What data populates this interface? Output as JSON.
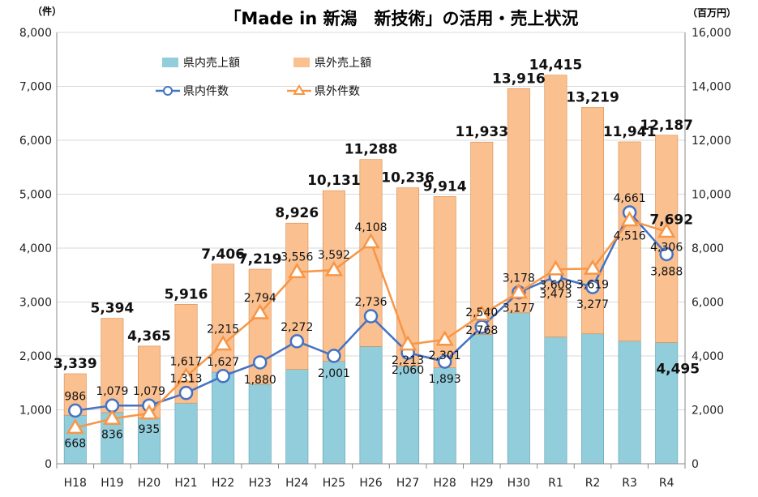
{
  "chart_data": {
    "type": "bar",
    "title": "「Made in 新潟　新技術」の活用・売上状況",
    "left_unit": "（件）",
    "right_unit": "（百万円）",
    "categories": [
      "H18",
      "H19",
      "H20",
      "H21",
      "H22",
      "H23",
      "H24",
      "H25",
      "H26",
      "H27",
      "H28",
      "H29",
      "H30",
      "R1",
      "R2",
      "R3",
      "R4"
    ],
    "left_axis": {
      "min": 0,
      "max": 8000,
      "ticks": [
        "0",
        "1,000",
        "2,000",
        "3,000",
        "4,000",
        "5,000",
        "6,000",
        "7,000",
        "8,000"
      ]
    },
    "right_axis": {
      "min": 0,
      "max": 16000,
      "ticks": [
        "0",
        "2,000",
        "4,000",
        "6,000",
        "8,000",
        "10,000",
        "12,000",
        "14,000",
        "16,000"
      ]
    },
    "bar_series": [
      {
        "name": "県内売上額",
        "color": "#92cddc",
        "values": [
          1800,
          1900,
          1700,
          2250,
          3400,
          2950,
          3500,
          3800,
          4350,
          3620,
          3560,
          4800,
          5600,
          4700,
          4820,
          4550,
          4495
        ]
      },
      {
        "name": "県外売上額",
        "color": "#fac090",
        "values": [
          1539,
          3494,
          2665,
          3666,
          4006,
          4269,
          5426,
          6331,
          6938,
          6616,
          6354,
          7133,
          8316,
          9715,
          8399,
          7391,
          7692
        ]
      }
    ],
    "bar_totals": [
      "3,339",
      "5,394",
      "4,365",
      "5,916",
      "7,406",
      "7,219",
      "8,926",
      "10,131",
      "11,288",
      "10,236",
      "9,914",
      "11,933",
      "13,916",
      "14,415",
      "13,219",
      "11,941",
      "12,187"
    ],
    "bar_extra_labels": {
      "R4_domestic": "4,495",
      "R4_outside": "7,692"
    },
    "line_series": [
      {
        "name": "県内件数",
        "color": "#4472c4",
        "marker": "circle",
        "values": [
          986,
          1079,
          1079,
          1313,
          1627,
          1880,
          2272,
          2001,
          2736,
          2060,
          1893,
          2540,
          3178,
          3473,
          3277,
          4661,
          3888
        ],
        "labels": [
          "986",
          "1,079",
          "1,079",
          "1,313",
          "1,627",
          "1,880",
          "2,272",
          "2,001",
          "2,736",
          "2,060",
          "1,893",
          "2,540",
          "3,178",
          "3,473",
          "3,277",
          "4,661",
          "3,888"
        ]
      },
      {
        "name": "県外件数",
        "color": "#f79646",
        "marker": "triangle",
        "values": [
          668,
          836,
          935,
          1617,
          2215,
          2794,
          3556,
          3592,
          4108,
          2213,
          2301,
          2768,
          3177,
          3608,
          3619,
          4516,
          4306
        ],
        "labels": [
          "668",
          "836",
          "935",
          "1,617",
          "2,215",
          "2,794",
          "3,556",
          "3,592",
          "4,108",
          "2,213",
          "2,301",
          "2,768",
          "3,177",
          "3,608",
          "3,619",
          "4,516",
          "4,306"
        ]
      }
    ],
    "grid": true,
    "legend_position": "top-left"
  }
}
